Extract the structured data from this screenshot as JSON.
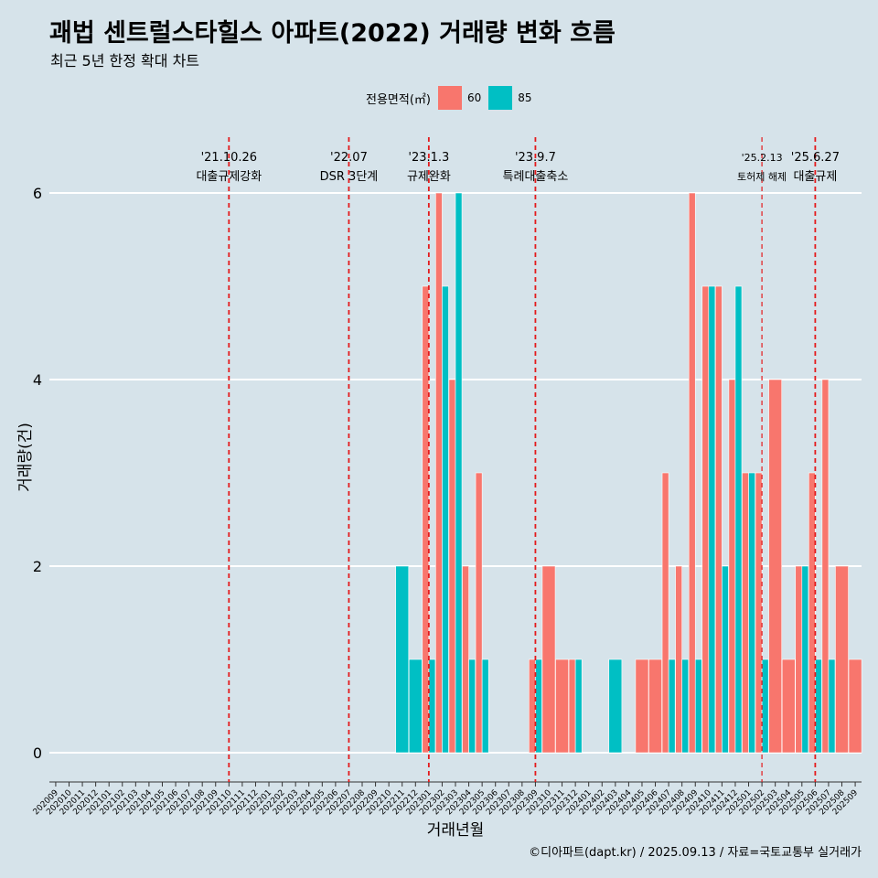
{
  "title": "괘법 센트럴스타힐스 아파트(2022) 거래량 변화 흐름",
  "subtitle": "최근 5년 한정 확대 차트",
  "caption": "©디아파트(dapt.kr) / 2025.09.13 / 자료=국토교통부 실거래가",
  "colors": {
    "background": "#d6e3ea",
    "s60": "#f8766d",
    "s85": "#00bfc4",
    "vline": "#e41a1c",
    "grid": "#ffffff"
  },
  "chart_data": {
    "type": "bar",
    "title": "괘법 센트럴스타힐스 아파트(2022) 거래량 변화 흐름",
    "subtitle": "최근 5년 한정 확대 차트",
    "xlabel": "거래년월",
    "ylabel": "거래량(건)",
    "ylim": [
      -0.3,
      6.6
    ],
    "yticks": [
      0,
      2,
      4,
      6
    ],
    "grid": "horizontal major lines only",
    "legend": {
      "title": "전용면적(㎡)",
      "position": "top",
      "entries": [
        "60",
        "85"
      ]
    },
    "categories": [
      "202009",
      "202010",
      "202011",
      "202012",
      "202101",
      "202102",
      "202103",
      "202104",
      "202105",
      "202106",
      "202107",
      "202108",
      "202109",
      "202110",
      "202111",
      "202112",
      "202201",
      "202202",
      "202203",
      "202204",
      "202205",
      "202206",
      "202207",
      "202208",
      "202209",
      "202210",
      "202211",
      "202212",
      "202301",
      "202302",
      "202303",
      "202304",
      "202305",
      "202306",
      "202307",
      "202308",
      "202309",
      "202310",
      "202311",
      "202312",
      "202401",
      "202402",
      "202403",
      "202404",
      "202405",
      "202406",
      "202407",
      "202408",
      "202409",
      "202410",
      "202411",
      "202412",
      "202501",
      "202502",
      "202503",
      "202504",
      "202505",
      "202506",
      "202507",
      "202508",
      "202509"
    ],
    "series": [
      {
        "name": "60",
        "values": [
          null,
          null,
          null,
          null,
          null,
          null,
          null,
          null,
          null,
          null,
          null,
          null,
          null,
          null,
          null,
          null,
          null,
          null,
          null,
          null,
          null,
          null,
          null,
          null,
          null,
          null,
          null,
          null,
          5,
          6,
          4,
          2,
          3,
          null,
          null,
          null,
          1,
          2,
          1,
          1,
          null,
          null,
          null,
          null,
          1,
          1,
          3,
          2,
          6,
          5,
          5,
          4,
          3,
          3,
          4,
          1,
          2,
          3,
          4,
          2,
          1
        ]
      },
      {
        "name": "85",
        "values": [
          null,
          null,
          null,
          null,
          null,
          null,
          null,
          null,
          null,
          null,
          null,
          null,
          null,
          null,
          null,
          null,
          null,
          null,
          null,
          null,
          null,
          null,
          null,
          null,
          null,
          null,
          2,
          1,
          1,
          5,
          6,
          1,
          1,
          null,
          null,
          null,
          1,
          null,
          null,
          1,
          null,
          null,
          1,
          null,
          null,
          null,
          1,
          1,
          1,
          5,
          2,
          5,
          3,
          1,
          null,
          null,
          2,
          1,
          1,
          null,
          null
        ]
      }
    ],
    "events": [
      {
        "date": "'21.10.26",
        "label": "대출규제강화",
        "at": "202110"
      },
      {
        "date": "'22.07",
        "label": "DSR 3단계",
        "at": "202207"
      },
      {
        "date": "'23.1.3",
        "label": "규제완화",
        "at": "202301"
      },
      {
        "date": "'23.9.7",
        "label": "특례대출축소",
        "at": "202309"
      },
      {
        "date": "'25.2.13",
        "label": "토허제 해제",
        "at": "202502"
      },
      {
        "date": "'25.6.27",
        "label": "대출규제",
        "at": "202506"
      }
    ]
  }
}
